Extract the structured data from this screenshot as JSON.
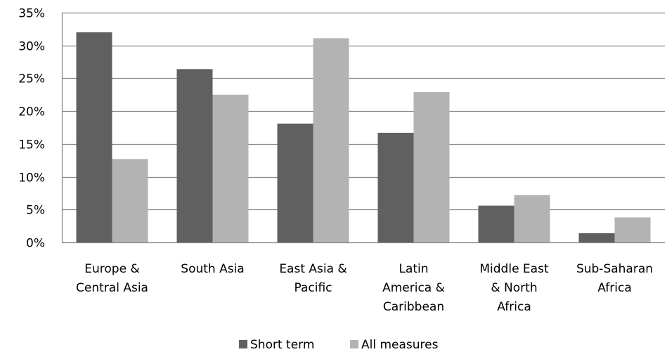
{
  "chart_data": {
    "type": "bar",
    "categories": [
      [
        "Europe &",
        "Central Asia"
      ],
      [
        "South Asia"
      ],
      [
        "East Asia &",
        "Pacific"
      ],
      [
        "Latin",
        "America &",
        "Caribbean"
      ],
      [
        "Middle East",
        "& North",
        "Africa"
      ],
      [
        "Sub-Saharan",
        "Africa"
      ]
    ],
    "series": [
      {
        "name": "Short term",
        "color": "#606060",
        "values": [
          32.0,
          26.4,
          18.1,
          16.7,
          5.6,
          1.4
        ]
      },
      {
        "name": "All measures",
        "color": "#b3b3b3",
        "values": [
          12.7,
          22.5,
          31.1,
          22.9,
          7.2,
          3.8
        ]
      }
    ],
    "ylim": [
      0,
      35
    ],
    "yticks": [
      "0%",
      "5%",
      "10%",
      "15%",
      "20%",
      "25%",
      "30%",
      "35%"
    ],
    "ytick_values": [
      0,
      5,
      10,
      15,
      20,
      25,
      30,
      35
    ],
    "grid": true,
    "grid_color": "#868686",
    "legend": "bottom"
  }
}
